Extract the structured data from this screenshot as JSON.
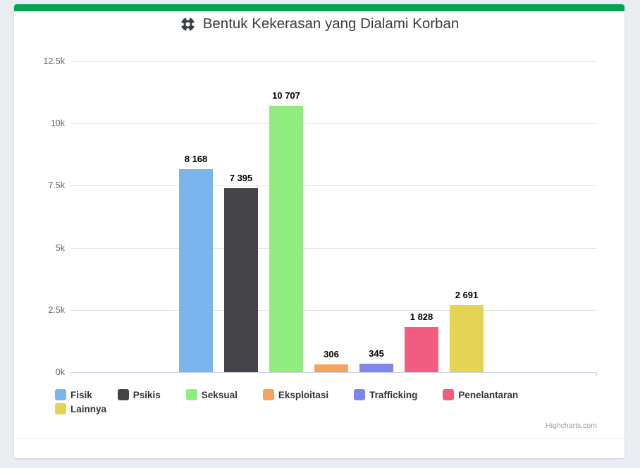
{
  "page": {
    "background": "#e9edf2",
    "card_background": "#ffffff",
    "accent_color": "#06a352"
  },
  "header": {
    "icon": "life-ring-icon",
    "title": "Bentuk Kekerasan yang Dialami Korban"
  },
  "chart_data": {
    "type": "bar",
    "title": "Bentuk Kekerasan yang Dialami Korban",
    "categories": [
      "Fisik",
      "Psikis",
      "Seksual",
      "Eksploitasi",
      "Trafficking",
      "Penelantaran",
      "Lainnya"
    ],
    "values": [
      8168,
      7395,
      10707,
      306,
      345,
      1828,
      2691
    ],
    "value_labels": [
      "8 168",
      "7 395",
      "10 707",
      "306",
      "345",
      "1 828",
      "2 691"
    ],
    "colors": [
      "#7cb5ec",
      "#434348",
      "#90ed7d",
      "#f7a35c",
      "#8085e9",
      "#f15c80",
      "#e4d354"
    ],
    "xlabel": "",
    "ylabel": "",
    "ylim": [
      0,
      12500
    ],
    "ytick_labels": [
      "0k",
      "2.5k",
      "5k",
      "7.5k",
      "10k",
      "12.5k"
    ],
    "grid": true,
    "legend_position": "bottom"
  },
  "legend": {
    "items": [
      {
        "label": "Fisik",
        "color": "#7cb5ec"
      },
      {
        "label": "Psikis",
        "color": "#434348"
      },
      {
        "label": "Seksual",
        "color": "#90ed7d"
      },
      {
        "label": "Eksploitasi",
        "color": "#f7a35c"
      },
      {
        "label": "Trafficking",
        "color": "#8085e9"
      },
      {
        "label": "Penelantaran",
        "color": "#f15c80"
      },
      {
        "label": "Lainnya",
        "color": "#e4d354"
      }
    ]
  },
  "credits": {
    "label": "Highcharts.com"
  }
}
